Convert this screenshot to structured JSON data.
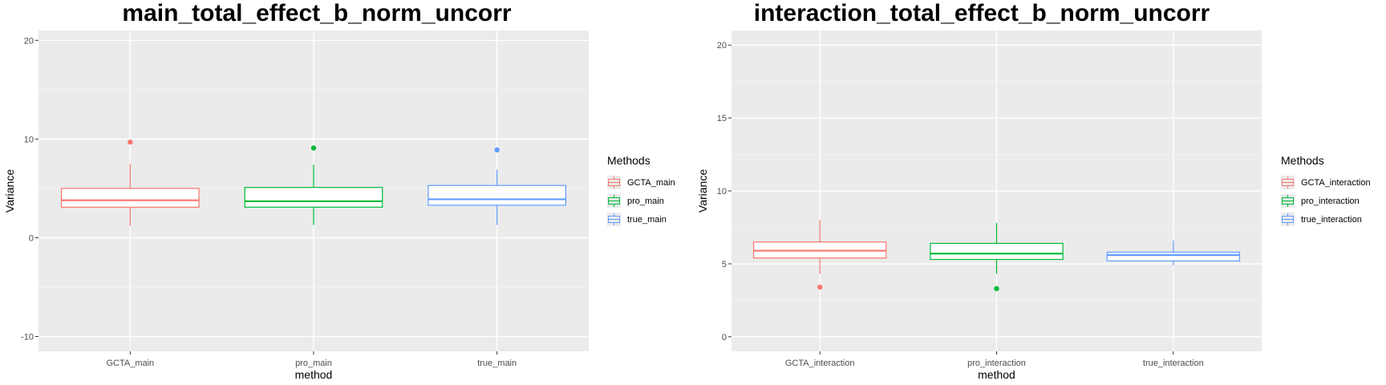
{
  "chart_data": [
    {
      "type": "box",
      "title": "main_total_effect_b_norm_uncorr",
      "xlabel": "method",
      "ylabel": "Variance",
      "ylim": [
        -11.5,
        21
      ],
      "yticks": [
        -10,
        0,
        10,
        20
      ],
      "grid": true,
      "legend": {
        "title": "Methods",
        "position": "right"
      },
      "categories": [
        "GCTA_main",
        "pro_main",
        "true_main"
      ],
      "colors": [
        "#F8766D",
        "#00BA38",
        "#619CFF"
      ],
      "boxes": [
        {
          "name": "GCTA_main",
          "whisker_low": 1.2,
          "q1": 3.1,
          "median": 3.8,
          "q3": 5.0,
          "whisker_high": 7.5,
          "outliers": [
            9.7
          ]
        },
        {
          "name": "pro_main",
          "whisker_low": 1.3,
          "q1": 3.1,
          "median": 3.7,
          "q3": 5.1,
          "whisker_high": 7.4,
          "outliers": [
            9.1
          ]
        },
        {
          "name": "true_main",
          "whisker_low": 1.3,
          "q1": 3.3,
          "median": 3.9,
          "q3": 5.3,
          "whisker_high": 6.9,
          "outliers": [
            8.9
          ]
        }
      ]
    },
    {
      "type": "box",
      "title": "interaction_total_effect_b_norm_uncorr",
      "xlabel": "method",
      "ylabel": "Variance",
      "ylim": [
        -1,
        21
      ],
      "yticks": [
        0,
        5,
        10,
        15,
        20
      ],
      "grid": true,
      "legend": {
        "title": "Methods",
        "position": "right"
      },
      "categories": [
        "GCTA_interaction",
        "pro_interaction",
        "true_interaction"
      ],
      "colors": [
        "#F8766D",
        "#00BA38",
        "#619CFF"
      ],
      "boxes": [
        {
          "name": "GCTA_interaction",
          "whisker_low": 4.3,
          "q1": 5.4,
          "median": 5.9,
          "q3": 6.5,
          "whisker_high": 8.0,
          "outliers": [
            3.4
          ]
        },
        {
          "name": "pro_interaction",
          "whisker_low": 4.3,
          "q1": 5.3,
          "median": 5.7,
          "q3": 6.4,
          "whisker_high": 7.8,
          "outliers": [
            3.3
          ]
        },
        {
          "name": "true_interaction",
          "whisker_low": 4.9,
          "q1": 5.2,
          "median": 5.6,
          "q3": 5.8,
          "whisker_high": 6.6,
          "outliers": []
        }
      ]
    }
  ]
}
